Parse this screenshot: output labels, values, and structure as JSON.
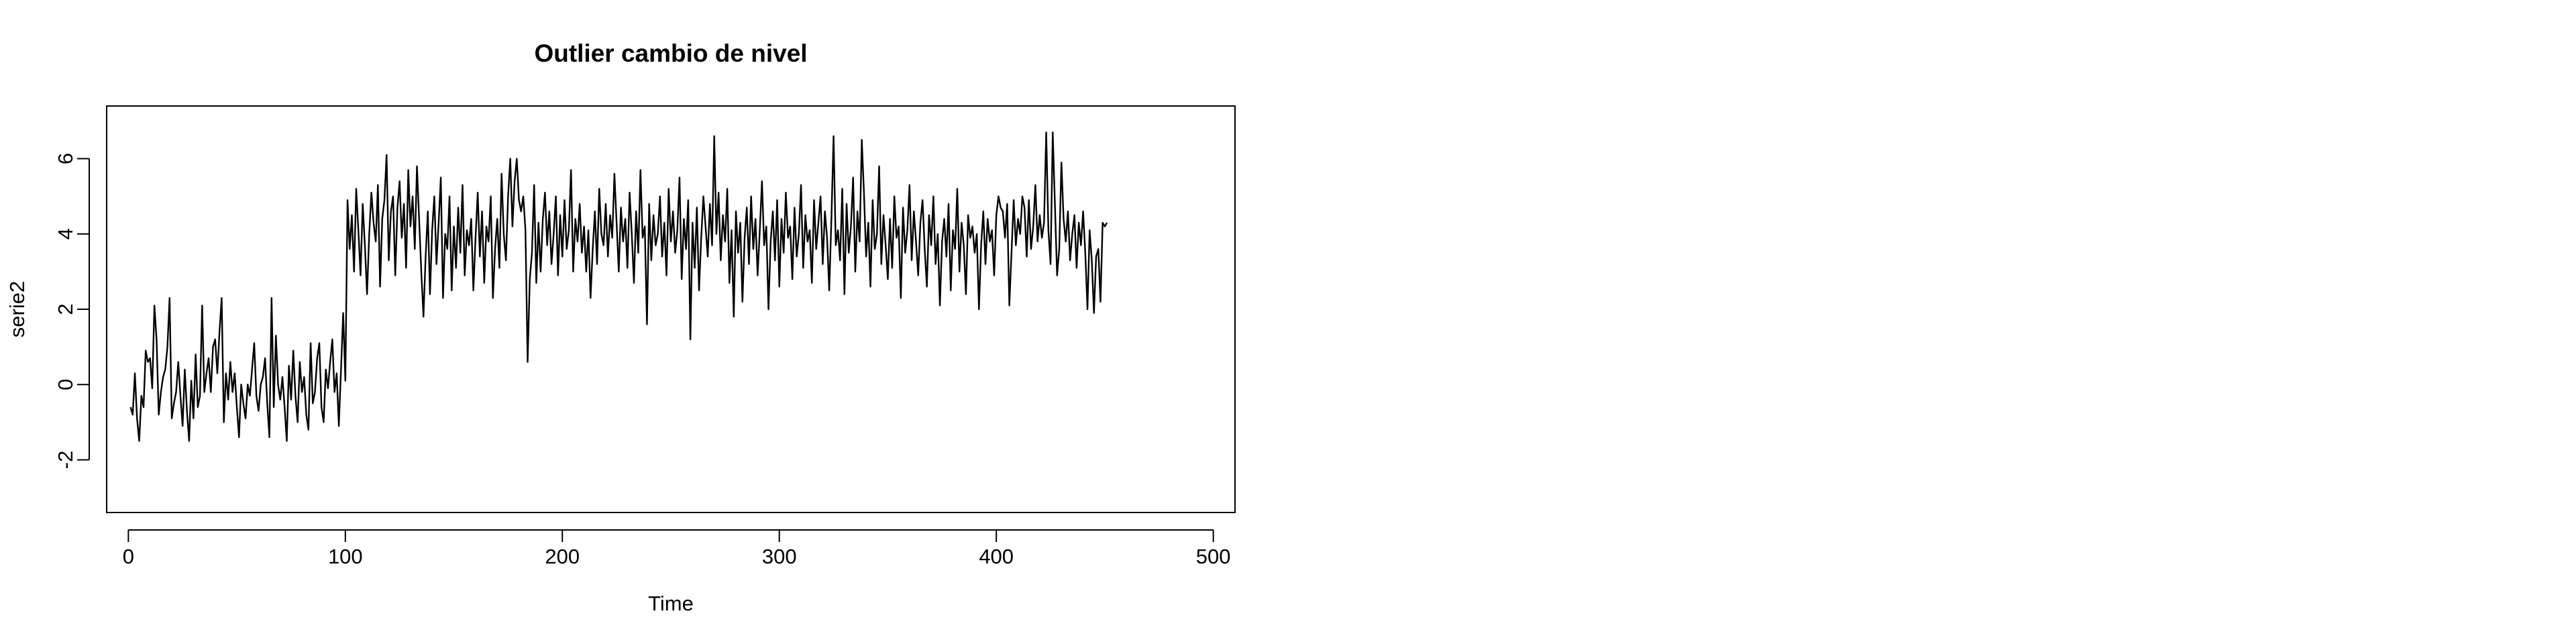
{
  "chart_data": {
    "type": "line",
    "title": "Outlier cambio de nivel",
    "xlabel": "Time",
    "ylabel": "serie2",
    "xlim": [
      -10,
      510
    ],
    "ylim": [
      -3.4,
      7.4
    ],
    "x_ticks": [
      0,
      100,
      200,
      300,
      400,
      500
    ],
    "y_ticks": [
      -2,
      0,
      2,
      4,
      6
    ],
    "x_tick_labels": [
      "0",
      "100",
      "200",
      "300",
      "400",
      "500"
    ],
    "y_tick_labels": [
      "-2",
      "0",
      "2",
      "4",
      "6"
    ],
    "grid": false,
    "legend": "none",
    "line_color": "#000000",
    "series": [
      {
        "x_start": 1,
        "x_step": 1,
        "values": [
          -0.6,
          -0.8,
          0.3,
          -0.9,
          -1.5,
          -0.3,
          -0.6,
          0.9,
          0.6,
          0.7,
          -0.1,
          2.1,
          1.2,
          -0.8,
          -0.2,
          0.2,
          0.4,
          1.0,
          2.3,
          -0.9,
          -0.5,
          -0.2,
          0.6,
          -0.3,
          -1.1,
          0.4,
          -0.7,
          -1.5,
          0.1,
          -0.9,
          0.8,
          -0.6,
          -0.3,
          2.1,
          -0.2,
          0.3,
          0.7,
          -0.2,
          1.0,
          1.2,
          0.3,
          1.4,
          2.3,
          -1.0,
          0.3,
          -0.4,
          0.6,
          -0.2,
          0.3,
          -0.6,
          -1.4,
          0.0,
          -0.5,
          -0.9,
          0.0,
          -0.3,
          0.4,
          1.1,
          -0.3,
          -0.7,
          0.0,
          0.2,
          0.7,
          -0.5,
          -1.4,
          2.3,
          -0.6,
          1.3,
          0.0,
          -0.4,
          0.2,
          -0.6,
          -1.5,
          0.5,
          -0.4,
          0.9,
          -0.3,
          -1.0,
          0.6,
          -0.2,
          0.2,
          -0.8,
          -1.2,
          1.1,
          -0.5,
          -0.2,
          0.7,
          1.1,
          -0.6,
          -1.0,
          0.4,
          -0.1,
          0.6,
          1.2,
          -0.2,
          0.3,
          -1.1,
          0.4,
          1.9,
          0.1,
          4.9,
          3.6,
          4.5,
          3.0,
          5.2,
          4.1,
          2.9,
          4.8,
          3.7,
          2.4,
          4.0,
          5.1,
          4.3,
          3.8,
          5.3,
          2.6,
          4.4,
          4.9,
          6.1,
          3.3,
          4.6,
          5.0,
          2.9,
          4.7,
          5.4,
          3.9,
          4.8,
          3.1,
          5.7,
          4.2,
          5.0,
          3.6,
          5.8,
          4.4,
          3.0,
          1.8,
          3.4,
          4.6,
          2.4,
          4.1,
          5.0,
          3.2,
          4.3,
          5.5,
          2.3,
          4.0,
          3.6,
          5.0,
          2.5,
          4.2,
          3.1,
          4.7,
          3.5,
          5.3,
          2.9,
          4.1,
          3.7,
          4.4,
          2.5,
          3.9,
          5.1,
          3.4,
          4.6,
          2.7,
          4.2,
          3.8,
          5.0,
          2.3,
          3.6,
          4.4,
          3.1,
          5.6,
          4.0,
          3.3,
          5.0,
          6.0,
          4.2,
          5.4,
          6.0,
          4.9,
          4.6,
          5.0,
          4.1,
          0.6,
          2.8,
          3.5,
          5.3,
          2.7,
          4.3,
          3.0,
          4.4,
          5.1,
          3.7,
          4.6,
          3.2,
          4.0,
          5.0,
          2.9,
          4.5,
          3.4,
          4.9,
          3.6,
          4.1,
          5.7,
          3.0,
          4.4,
          3.8,
          4.8,
          3.5,
          4.2,
          3.0,
          4.1,
          2.3,
          3.6,
          4.6,
          3.2,
          5.2,
          4.0,
          3.7,
          4.8,
          3.4,
          4.5,
          3.9,
          5.6,
          4.3,
          3.0,
          4.7,
          3.8,
          4.4,
          3.1,
          5.1,
          4.0,
          2.7,
          4.6,
          3.5,
          5.7,
          3.9,
          4.2,
          1.6,
          4.8,
          3.3,
          4.5,
          3.7,
          4.0,
          5.0,
          3.4,
          4.3,
          2.9,
          5.2,
          3.8,
          4.6,
          3.5,
          4.1,
          5.5,
          2.8,
          4.4,
          3.6,
          4.9,
          1.2,
          4.3,
          3.1,
          4.7,
          2.5,
          3.9,
          5.0,
          4.2,
          3.4,
          4.8,
          3.7,
          6.6,
          4.0,
          5.1,
          3.3,
          4.5,
          3.8,
          5.2,
          2.7,
          4.1,
          1.8,
          4.6,
          3.5,
          4.3,
          2.2,
          3.9,
          4.7,
          3.2,
          5.0,
          3.6,
          4.4,
          2.9,
          4.1,
          5.4,
          3.7,
          4.2,
          2.0,
          3.8,
          4.6,
          3.3,
          4.9,
          2.6,
          4.4,
          3.5,
          5.1,
          3.9,
          4.2,
          2.8,
          4.7,
          3.4,
          4.0,
          5.3,
          3.1,
          4.5,
          3.8,
          4.1,
          2.7,
          4.9,
          3.6,
          4.3,
          5.0,
          3.2,
          4.6,
          3.9,
          2.5,
          4.4,
          6.6,
          3.7,
          4.1,
          3.3,
          5.2,
          2.4,
          4.8,
          3.5,
          4.2,
          5.5,
          3.0,
          4.6,
          3.8,
          6.5,
          5.1,
          3.4,
          4.3,
          2.6,
          4.9,
          3.6,
          4.0,
          5.8,
          3.2,
          4.5,
          3.7,
          2.8,
          4.4,
          3.1,
          5.0,
          3.9,
          4.2,
          2.3,
          4.7,
          3.5,
          4.1,
          5.3,
          3.3,
          4.6,
          3.8,
          2.9,
          4.3,
          4.9,
          3.6,
          2.6,
          4.5,
          3.7,
          5.0,
          3.2,
          4.0,
          2.1,
          3.8,
          4.4,
          3.4,
          4.8,
          2.5,
          4.1,
          3.6,
          5.2,
          3.0,
          4.3,
          3.7,
          2.4,
          4.5,
          3.9,
          4.2,
          3.5,
          4.0,
          2.0,
          3.7,
          4.6,
          3.2,
          4.4,
          3.8,
          4.1,
          2.9,
          4.5,
          5.0,
          4.7,
          4.6,
          3.9,
          4.8,
          2.1,
          3.5,
          4.9,
          3.7,
          4.4,
          4.0,
          5.0,
          4.7,
          3.4,
          4.9,
          3.6,
          4.2,
          5.3,
          3.8,
          4.5,
          3.9,
          4.3,
          6.7,
          4.1,
          3.2,
          6.7,
          4.8,
          2.9,
          3.6,
          5.9,
          4.4,
          3.8,
          4.6,
          3.3,
          4.0,
          4.5,
          3.1,
          4.3,
          3.7,
          4.6,
          3.5,
          2.0,
          4.1,
          3.3,
          1.9,
          3.4,
          3.6,
          2.2,
          4.3,
          4.2,
          4.3
        ]
      }
    ]
  }
}
